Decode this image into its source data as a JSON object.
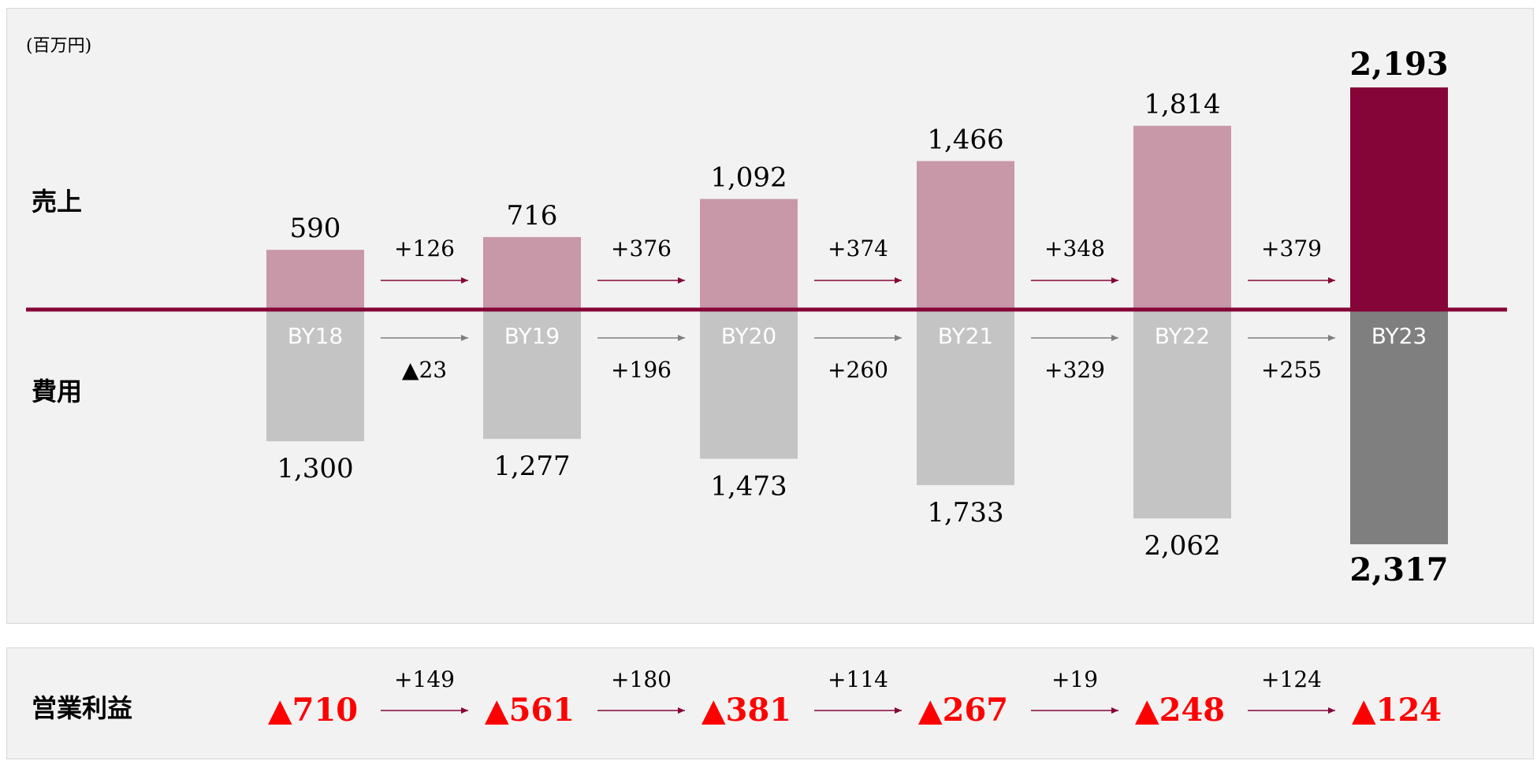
{
  "unit_label": "(百万円)",
  "row_labels": {
    "revenue": "売上",
    "cost": "費用",
    "operating_profit": "営業利益"
  },
  "colors": {
    "revenue_bar": "#c898a8",
    "revenue_bar_highlight": "#850538",
    "cost_bar": "#c4c4c4",
    "cost_bar_highlight": "#7f7f7f",
    "axis": "#850538",
    "revenue_arrow": "#850538",
    "cost_arrow": "#7f7f7f",
    "profit_text": "#ff0000"
  },
  "chart_data": {
    "type": "bar",
    "categories": [
      "BY18",
      "BY19",
      "BY20",
      "BY21",
      "BY22",
      "BY23"
    ],
    "series": [
      {
        "name": "売上",
        "values": [
          590,
          716,
          1092,
          1466,
          1814,
          2193
        ],
        "labels": [
          "590",
          "716",
          "1,092",
          "1,466",
          "1,814",
          "2,193"
        ]
      },
      {
        "name": "費用",
        "values": [
          1300,
          1277,
          1473,
          1733,
          2062,
          2317
        ],
        "labels": [
          "1,300",
          "1,277",
          "1,473",
          "1,733",
          "2,062",
          "2,317"
        ]
      }
    ],
    "revenue_changes": [
      "+126",
      "+376",
      "+374",
      "+348",
      "+379"
    ],
    "cost_changes": [
      "▲23",
      "+196",
      "+260",
      "+329",
      "+255"
    ],
    "operating_profit": {
      "values": [
        -710,
        -561,
        -381,
        -267,
        -248,
        -124
      ],
      "labels": [
        "▲710",
        "▲561",
        "▲381",
        "▲267",
        "▲248",
        "▲124"
      ],
      "changes": [
        "+149",
        "+180",
        "+114",
        "+19",
        "+124"
      ]
    },
    "highlight_index": 5
  }
}
